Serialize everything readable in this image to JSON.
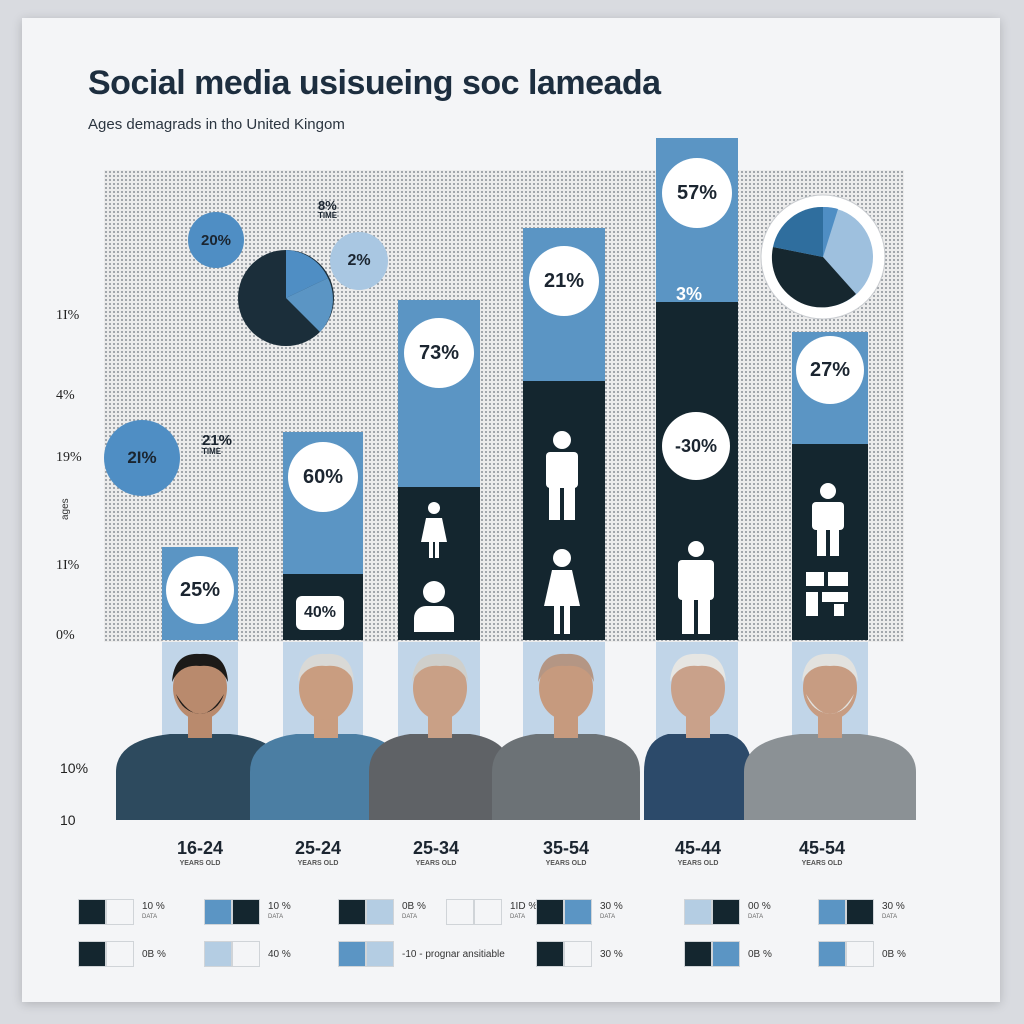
{
  "header": {
    "title": "Social media usisueing soc lameada",
    "subtitle": "Ages demagrads in tho United Kingom"
  },
  "colors": {
    "dark": "#14262f",
    "mid": "#5b95c4",
    "light": "#b4cde3",
    "paper": "#f4f5f7"
  },
  "chart_data": {
    "type": "bar",
    "y_tick_labels": [
      "1I%",
      "4%",
      "19%",
      "1I%",
      "0%"
    ],
    "y_axis_title": "ages",
    "categories": [
      "16-24",
      "25-24",
      "25-34",
      "35-54",
      "45-44",
      "45-54"
    ],
    "category_sublabels": [
      "YEARS OLD",
      "YEARS OLD",
      "YEARS OLD",
      "YEARS OLD",
      "YEARS OLD",
      "YEARS OLD"
    ],
    "series": [
      {
        "values": [
          25,
          60,
          73,
          21,
          57,
          27
        ]
      }
    ],
    "bar_labels": [
      "25%",
      "60%",
      "73%",
      "21%",
      "57%",
      "27%"
    ],
    "inner_labels": [
      "",
      "40%",
      "",
      "",
      "-30%",
      ""
    ],
    "inner_labels_2": [
      "",
      "",
      "",
      "",
      "3%",
      ""
    ],
    "annotations": {
      "bubble_left": "2I%",
      "note_left": "21%",
      "note_left_sub": "TIME",
      "bubble_top": "20%",
      "note_top": "8%",
      "note_top_sub": "TIME",
      "bubble_pie": "2%"
    },
    "bottom_axis": {
      "label_a": "10%",
      "label_b": "10"
    },
    "legend": [
      {
        "text": "10 %",
        "sub": "DATA",
        "colors": [
          "#14262f",
          "#f4f5f7"
        ]
      },
      {
        "text": "10 %",
        "sub": "DATA",
        "colors": [
          "#5b95c4",
          "#14262f"
        ]
      },
      {
        "text": "0B %",
        "sub": "DATA",
        "colors": [
          "#14262f",
          "#b4cde3"
        ]
      },
      {
        "text": "1ID %",
        "sub": "DATA",
        "colors": [
          "#f4f5f7",
          "#f4f5f7"
        ]
      },
      {
        "text": "30 %",
        "sub": "DATA",
        "colors": [
          "#14262f",
          "#5b95c4"
        ]
      },
      {
        "text": "00 %",
        "sub": "DATA",
        "colors": [
          "#b4cde3",
          "#14262f"
        ]
      },
      {
        "text": "30 %",
        "sub": "DATA",
        "colors": [
          "#5b95c4",
          "#14262f"
        ]
      },
      {
        "text": "0B %",
        "sub": "",
        "colors": [
          "#14262f",
          "#f4f5f7"
        ]
      },
      {
        "text": "40 %",
        "sub": "",
        "colors": [
          "#b4cde3",
          "#f4f5f7"
        ]
      },
      {
        "text": "-10 - prognar ansitiable",
        "sub": "",
        "colors": [
          "#5b95c4",
          "#b4cde3"
        ]
      },
      {
        "text": "30 %",
        "sub": "",
        "colors": [
          "#14262f",
          "#f4f5f7"
        ]
      },
      {
        "text": "0B %",
        "sub": "",
        "colors": [
          "#14262f",
          "#5b95c4"
        ]
      },
      {
        "text": "0B %",
        "sub": "",
        "colors": [
          "#5b95c4",
          "#f4f5f7"
        ]
      }
    ]
  }
}
